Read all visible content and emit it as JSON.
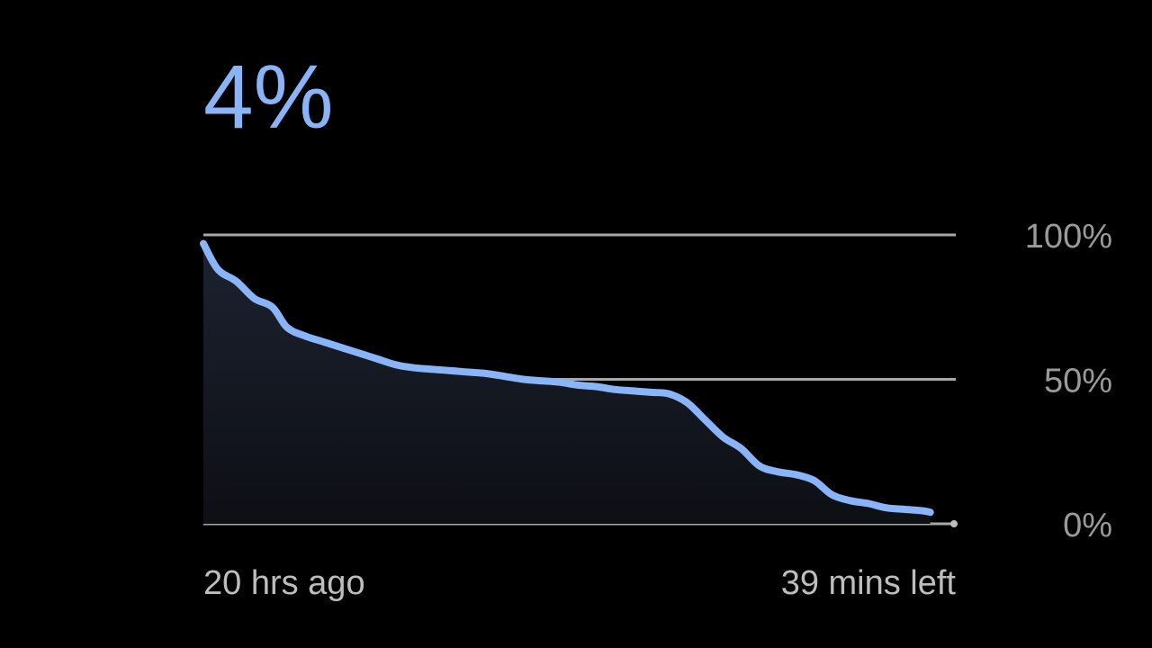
{
  "battery": {
    "level_text": "4%"
  },
  "colors": {
    "accent": "#8ab4f8",
    "gridline": "#a8a8a8",
    "label": "#bdbdbd",
    "tick_label": "#9a9a9a",
    "background": "#000000"
  },
  "chart_data": {
    "type": "area",
    "x_labels": {
      "start": "20 hrs ago",
      "end": "39 mins left"
    },
    "y_ticks": [
      {
        "value": 100,
        "label": "100%"
      },
      {
        "value": 50,
        "label": "50%"
      },
      {
        "value": 0,
        "label": "0%"
      }
    ],
    "xlim": [
      -20,
      0.65
    ],
    "ylim": [
      0,
      100
    ],
    "grid": true,
    "x_unit": "hours",
    "series": [
      {
        "x": [
          -20.0,
          -19.6,
          -19.1,
          -18.6,
          -18.1,
          -17.7,
          -17.2,
          -16.7,
          -16.2,
          -15.7,
          -15.2,
          -14.7,
          -14.2,
          -13.7,
          -13.2,
          -12.7,
          -12.2,
          -11.7,
          -11.2,
          -10.7,
          -10.2,
          -9.7,
          -9.2,
          -8.7,
          -8.2,
          -7.7,
          -7.2,
          -6.7,
          -6.2,
          -5.7,
          -5.2,
          -4.7,
          -4.2,
          -3.7,
          -3.2,
          -2.7,
          -2.2,
          -1.7,
          -1.2,
          -0.7,
          -0.2,
          0.0
        ],
        "values": [
          97,
          88,
          84,
          78,
          75,
          68,
          65,
          63,
          61,
          59,
          57,
          55,
          54,
          53.5,
          53,
          52.5,
          52,
          51,
          50,
          49.5,
          49,
          48,
          47.5,
          46.5,
          46,
          45.5,
          45,
          42,
          36,
          30,
          26,
          20,
          18,
          17,
          15,
          10,
          8,
          7,
          5.5,
          5,
          4.5,
          4
        ]
      }
    ],
    "end_marker": {
      "x": 0.65,
      "value": 0
    }
  }
}
